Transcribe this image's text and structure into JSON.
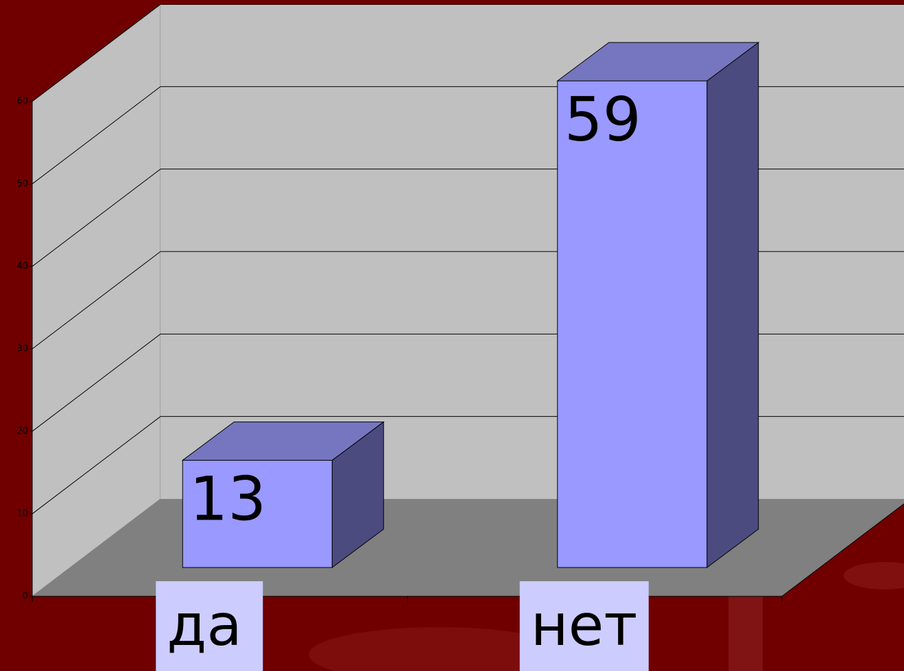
{
  "chart_data": {
    "type": "bar3d",
    "categories": [
      "да",
      "нет"
    ],
    "values": [
      13,
      59
    ],
    "color": "#9999ff",
    "ylim": [
      0,
      60
    ],
    "yticks": [
      0,
      10,
      20,
      30,
      40,
      50,
      60
    ],
    "grid": true
  }
}
